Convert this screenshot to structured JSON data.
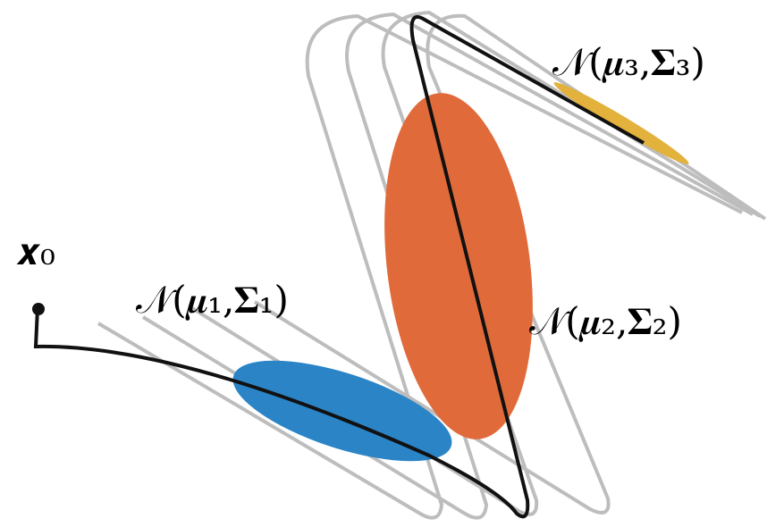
{
  "start": {
    "label": "𝒙₀"
  },
  "gaussians": [
    {
      "label": "𝒩(𝝁₁,𝚺₁)"
    },
    {
      "label": "𝒩(𝝁₂,𝚺₂)"
    },
    {
      "label": "𝒩(𝝁₃,𝚺₃)"
    }
  ]
}
